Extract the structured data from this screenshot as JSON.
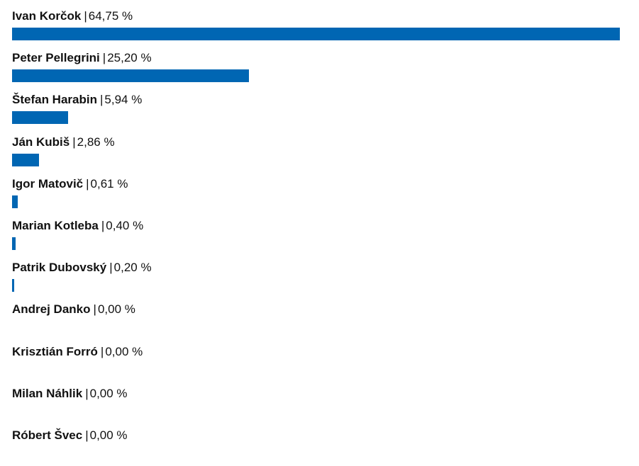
{
  "chart_data": {
    "type": "bar",
    "orientation": "horizontal",
    "unit": "%",
    "separator": "|",
    "bar_color": "#0066b3",
    "xlim": [
      0,
      65
    ],
    "categories": [
      "Ivan Korčok",
      "Peter Pellegrini",
      "Štefan Harabin",
      "Ján Kubiš",
      "Igor Matovič",
      "Marian Kotleba",
      "Patrik Dubovský",
      "Andrej Danko",
      "Krisztián Forró",
      "Milan Náhlik",
      "Róbert Švec"
    ],
    "value_labels": [
      "64,75 %",
      "25,20 %",
      "5,94 %",
      "2,86 %",
      "0,61 %",
      "0,40 %",
      "0,20 %",
      "0,00 %",
      "0,00 %",
      "0,00 %",
      "0,00 %"
    ],
    "values": [
      64.75,
      25.2,
      5.94,
      2.86,
      0.61,
      0.4,
      0.2,
      0.0,
      0.0,
      0.0,
      0.0
    ]
  }
}
